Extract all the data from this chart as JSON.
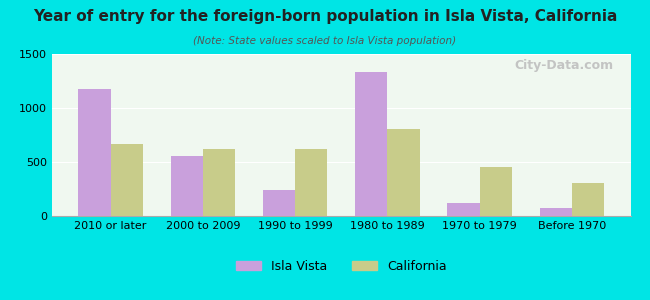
{
  "title": "Year of entry for the foreign-born population in Isla Vista, California",
  "subtitle": "(Note: State values scaled to Isla Vista population)",
  "categories": [
    "2010 or later",
    "2000 to 2009",
    "1990 to 1999",
    "1980 to 1989",
    "1970 to 1979",
    "Before 1970"
  ],
  "isla_vista": [
    1175,
    560,
    240,
    1330,
    120,
    75
  ],
  "california": [
    665,
    625,
    620,
    810,
    450,
    305
  ],
  "isla_vista_color": "#c9a0dc",
  "california_color": "#c8cc8a",
  "background_outer": "#00e5e5",
  "background_inner": "#f0f8f0",
  "ylim": [
    0,
    1500
  ],
  "yticks": [
    0,
    500,
    1000,
    1500
  ],
  "bar_width": 0.35,
  "legend_isla_vista": "Isla Vista",
  "legend_california": "California",
  "watermark": "City-Data.com"
}
